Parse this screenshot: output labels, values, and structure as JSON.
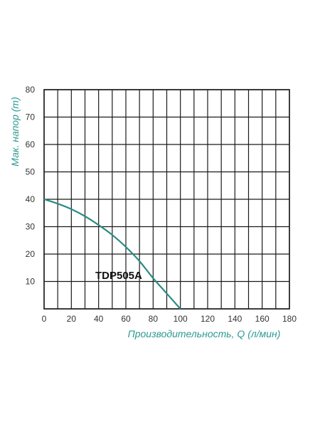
{
  "chart_data": {
    "type": "line",
    "xlabel": "Производительность, Q (л/мин)",
    "ylabel": "Мак. напор (m)",
    "xlim": [
      0,
      180
    ],
    "ylim": [
      0,
      80
    ],
    "x_ticks": [
      0,
      20,
      40,
      60,
      80,
      100,
      120,
      140,
      160,
      180
    ],
    "y_ticks": [
      10,
      20,
      30,
      40,
      50,
      60,
      70,
      80
    ],
    "grid": true,
    "series": [
      {
        "name": "TDP505A",
        "x": [
          0,
          10,
          20,
          30,
          40,
          50,
          60,
          70,
          80,
          90,
          100
        ],
        "y": [
          40,
          38.4,
          36.4,
          33.8,
          30.6,
          27,
          22.6,
          17.4,
          11.2,
          5.6,
          0
        ]
      }
    ],
    "colors": {
      "curve": "#2a8c84",
      "axis_title": "#2a9a92",
      "grid": "#1a1a1a"
    }
  }
}
